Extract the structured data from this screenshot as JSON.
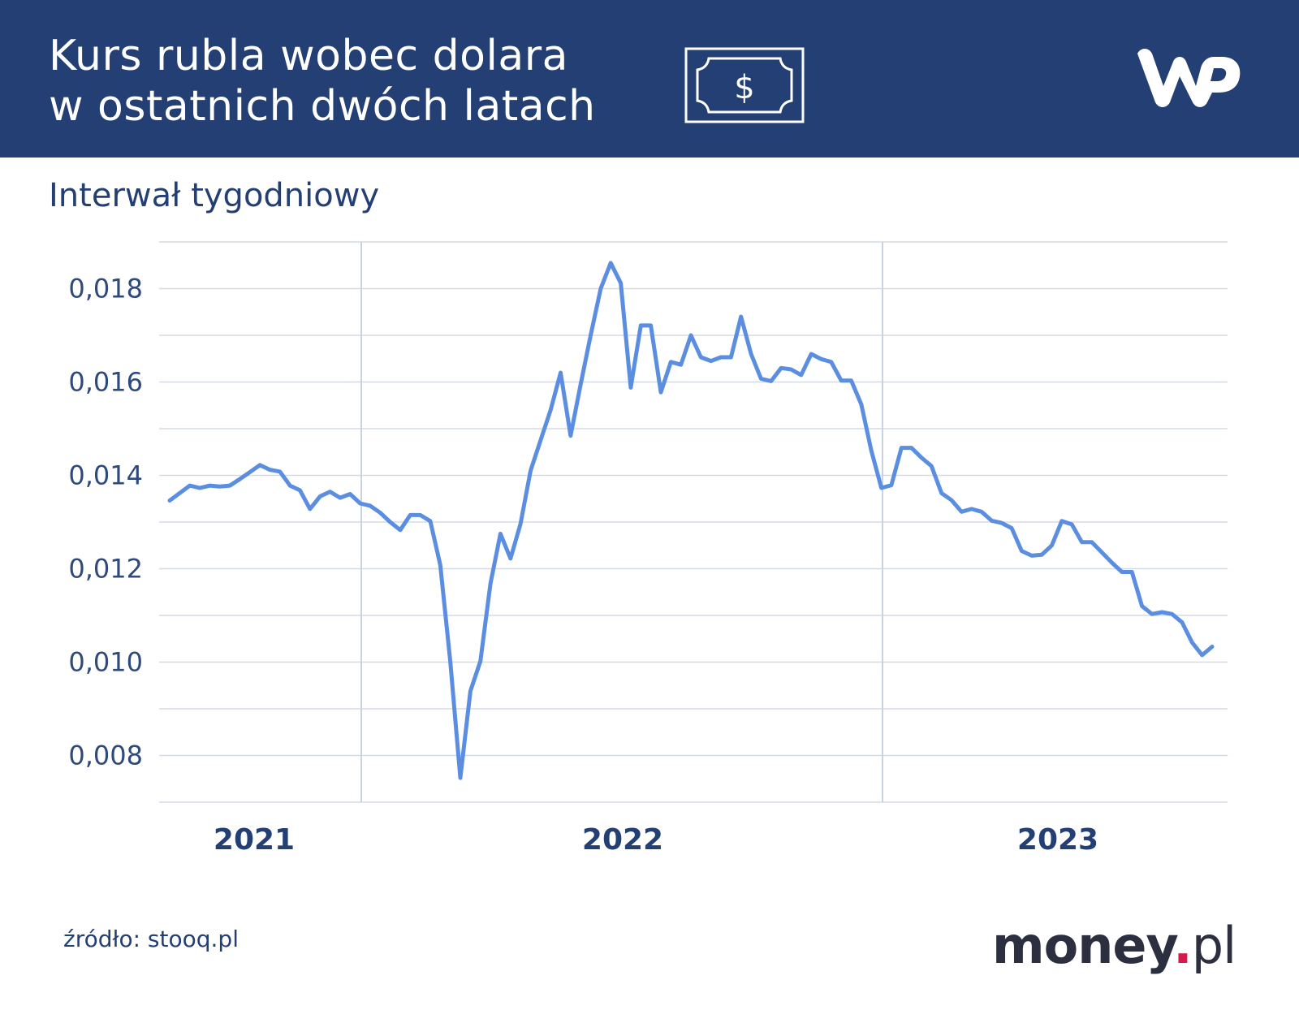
{
  "header": {
    "title_line1": "Kurs rubla wobec dolara",
    "title_line2": "w ostatnich dwóch latach",
    "bg_color": "#233f74",
    "icon": "dollar-bill-icon",
    "logo": "wp-logo"
  },
  "subtitle": "Interwał tygodniowy",
  "footer": {
    "source": "źródło: stooq.pl",
    "brand_main": "money",
    "brand_dot": ".",
    "brand_tld": "pl",
    "brand_dot_color": "#d6194a"
  },
  "chart_data": {
    "type": "line",
    "title": "",
    "xlabel": "",
    "ylabel": "",
    "ylim": [
      0.007,
      0.019
    ],
    "y_ticks": [
      "0,018",
      "0,016",
      "0,014",
      "0,012",
      "0,010",
      "0,008"
    ],
    "y_tick_values": [
      0.018,
      0.016,
      0.014,
      0.012,
      0.01,
      0.008
    ],
    "x_labels": [
      "2021",
      "2022",
      "2023"
    ],
    "grid": true,
    "line_color": "#5b8ee0",
    "series": [
      {
        "values": [
          0.01346,
          0.01362,
          0.01378,
          0.01373,
          0.01378,
          0.01376,
          0.01378,
          0.01392,
          0.01407,
          0.01422,
          0.01412,
          0.01408,
          0.01378,
          0.01368,
          0.01328,
          0.01355,
          0.01365,
          0.01352,
          0.0136,
          0.0134,
          0.01335,
          0.0132,
          0.013,
          0.01283,
          0.01315,
          0.01315,
          0.01302,
          0.01208,
          0.01,
          0.00752,
          0.00938,
          0.01002,
          0.01168,
          0.01275,
          0.01222,
          0.01296,
          0.0141,
          0.01475,
          0.0154,
          0.0162,
          0.01485,
          0.01595,
          0.017,
          0.018,
          0.01855,
          0.01812,
          0.01588,
          0.01721,
          0.01721,
          0.01578,
          0.01643,
          0.01637,
          0.017,
          0.01653,
          0.01645,
          0.01653,
          0.01653,
          0.0174,
          0.0166,
          0.01607,
          0.01602,
          0.0163,
          0.01627,
          0.01615,
          0.0166,
          0.01649,
          0.01643,
          0.01603,
          0.01603,
          0.01552,
          0.01453,
          0.01373,
          0.01379,
          0.01459,
          0.01459,
          0.01438,
          0.0142,
          0.01362,
          0.01347,
          0.01322,
          0.01328,
          0.01322,
          0.01303,
          0.01298,
          0.01287,
          0.01238,
          0.01228,
          0.0123,
          0.0125,
          0.01302,
          0.01295,
          0.01257,
          0.01257,
          0.01235,
          0.01213,
          0.01193,
          0.01193,
          0.0112,
          0.01103,
          0.01107,
          0.01103,
          0.01085,
          0.01042,
          0.01015,
          0.01033
        ]
      }
    ]
  }
}
